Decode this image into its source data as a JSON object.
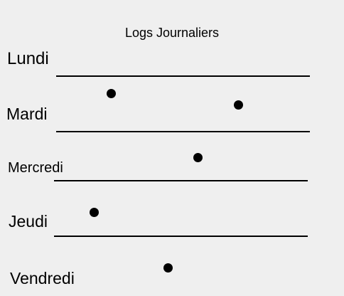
{
  "header": {
    "title": "Logs Journaliers"
  },
  "days": [
    {
      "label": "Lundi"
    },
    {
      "label": "Mardi"
    },
    {
      "label": "Mercredi"
    },
    {
      "label": "Jeudi"
    },
    {
      "label": "Vendredi"
    }
  ]
}
